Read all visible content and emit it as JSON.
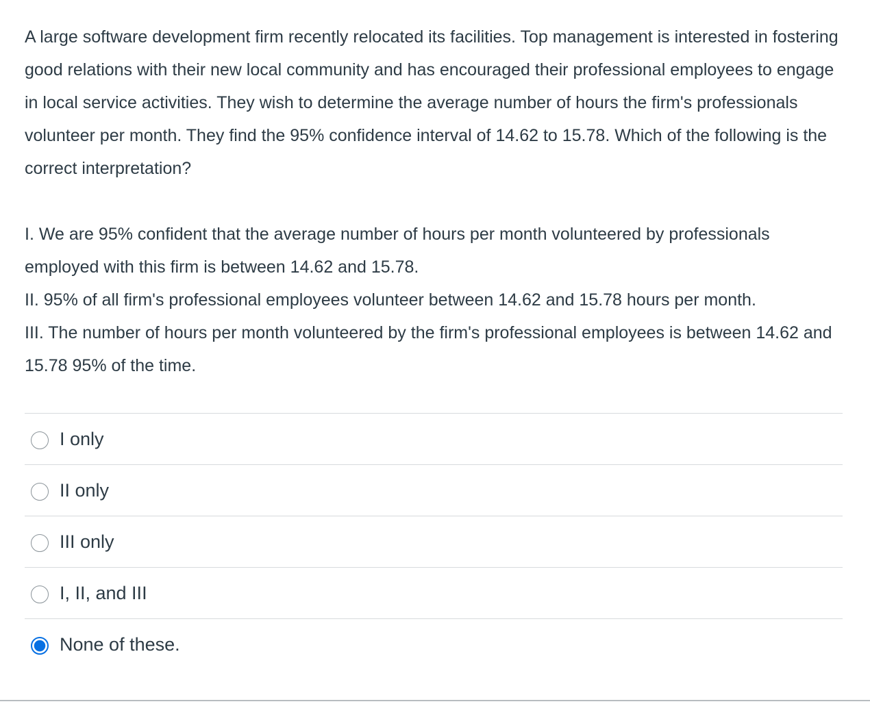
{
  "question": {
    "prompt": "A large software development firm recently relocated its facilities. Top management is interested in fostering good relations with their new local community and has encouraged their professional employees to engage in local service activities. They wish to determine the average number of hours the firm's professionals volunteer per month. They find the 95% confidence interval of 14.62 to 15.78. Which of the following is the correct interpretation?",
    "statements": [
      "I. We are 95% confident that the average number of hours per month volunteered by professionals employed with this firm is between 14.62 and 15.78.",
      "II. 95% of all firm's professional employees volunteer between 14.62 and 15.78 hours per month.",
      "III. The number of hours per month volunteered by the firm's professional employees is between 14.62 and 15.78 95% of the time."
    ]
  },
  "answers": [
    {
      "label": "I only",
      "selected": false
    },
    {
      "label": "II only",
      "selected": false
    },
    {
      "label": "III only",
      "selected": false
    },
    {
      "label": "I, II, and III",
      "selected": false
    },
    {
      "label": "None of these.",
      "selected": true
    }
  ],
  "colors": {
    "text": "#2d3b45",
    "selected_radio": "#0770e3",
    "radio_border": "#8a9399",
    "divider": "#d7dadd"
  }
}
